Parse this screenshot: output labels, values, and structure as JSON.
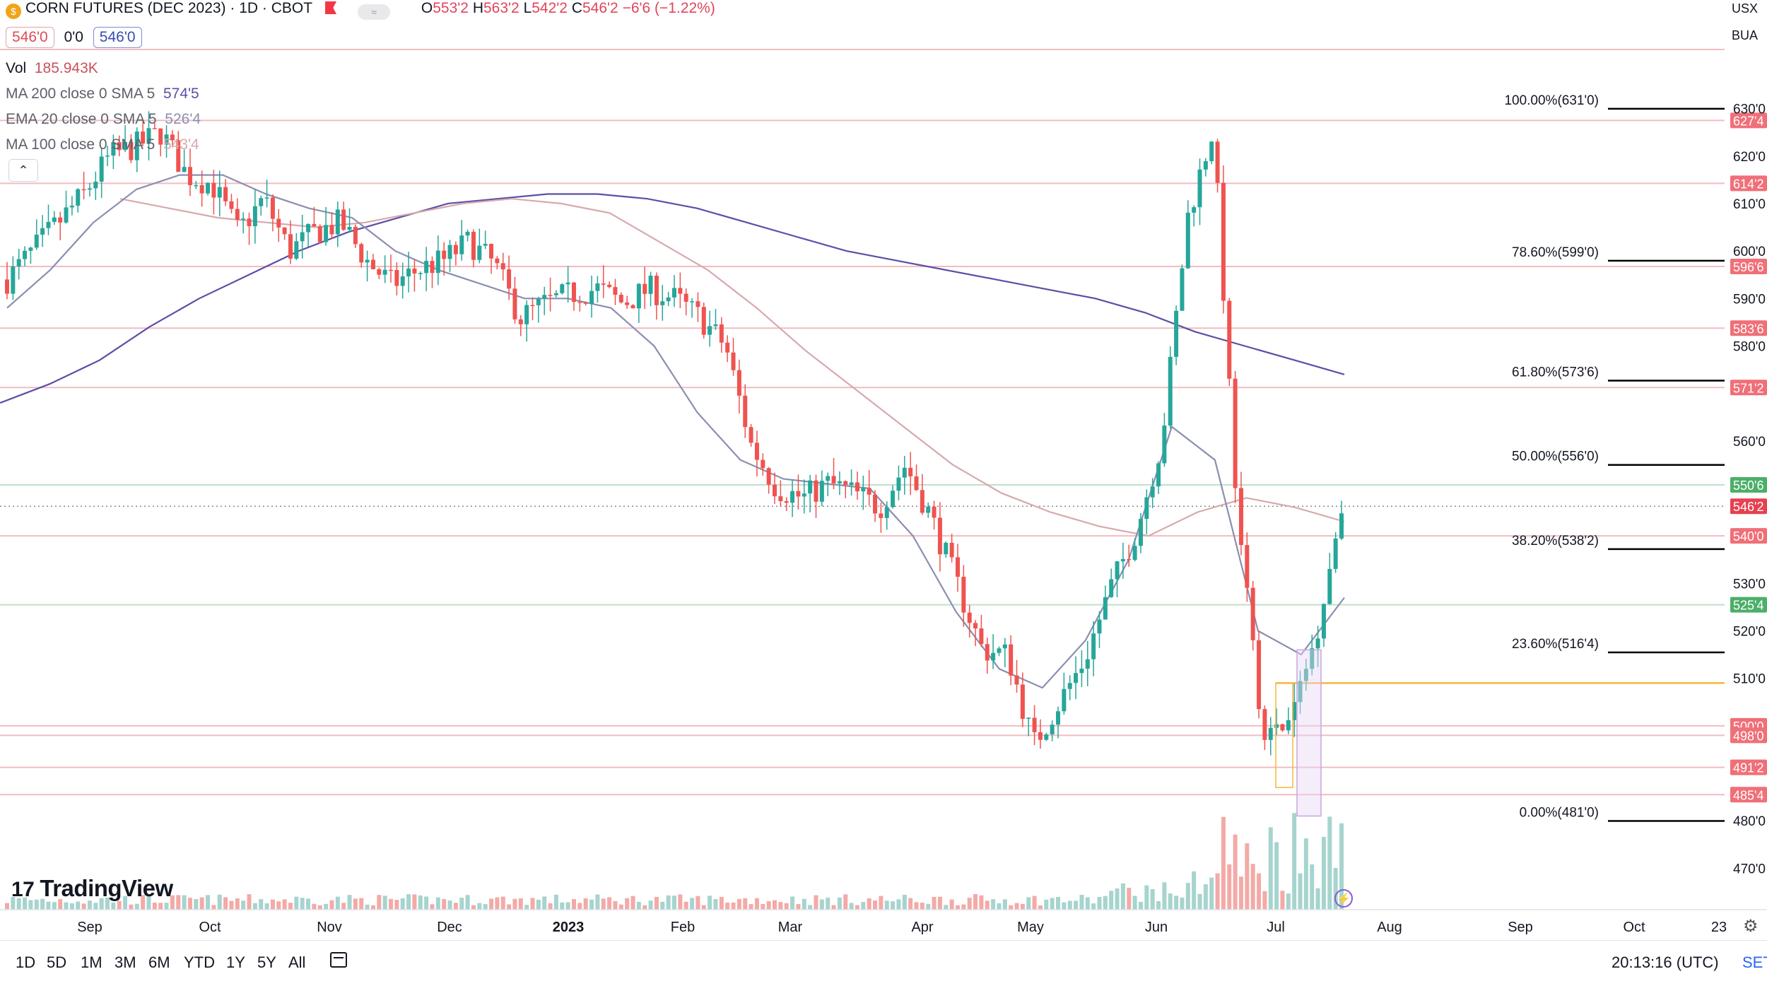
{
  "header": {
    "symbol_title": "CORN FUTURES (DEC 2023) · 1D · CBOT",
    "ohlc": {
      "o_label": "O",
      "o": "553'2",
      "h_label": "H",
      "h": "563'2",
      "l_label": "L",
      "l": "542'2",
      "c_label": "C",
      "c": "546'2",
      "change": "−6'6 (−1.22%)"
    },
    "sell_price": "546'0",
    "spread": "0'0",
    "buy_price": "546'0",
    "toggle_glyph": "≈"
  },
  "indicators": {
    "vol": {
      "label": "Vol",
      "value": "185.943K"
    },
    "ma200": {
      "label": "MA 200 close 0 SMA 5",
      "value": "574'5",
      "color": "#5b4fa6"
    },
    "ema20": {
      "label": "EMA 20 close 0 SMA 5",
      "value": "526'4",
      "color": "#8a8fb0"
    },
    "ma100": {
      "label": "MA 100 close 0 SMA 5",
      "value": "543'4",
      "color": "#d7a9ad"
    }
  },
  "collapse_glyph": "⌃",
  "top_right": {
    "currency": "USX",
    "unit": "BUA"
  },
  "brand": {
    "mark": "17",
    "name": "TradingView"
  },
  "bottom_bar": {
    "ranges": [
      "1D",
      "5D",
      "1M",
      "3M",
      "6M",
      "YTD",
      "1Y",
      "5Y",
      "All"
    ],
    "clock": "20:13:16 (UTC)",
    "settings": "SET"
  },
  "colors": {
    "up": "#26a69a",
    "down": "#ef5350",
    "vol_up": "#a6d4ce",
    "vol_down": "#f3aaa7",
    "level": "#f2bcc0",
    "fib": "#000000",
    "axis_text": "#131722"
  },
  "chart_data": {
    "type": "candlestick",
    "x_unit": "date",
    "y_unit": "cents (1/8 ticks)",
    "y_ticks": [
      "630'0",
      "620'0",
      "610'0",
      "600'0",
      "590'0",
      "580'0",
      "560'0",
      "530'0",
      "520'0",
      "510'0",
      "480'0",
      "470'0"
    ],
    "x_ticks": [
      "Sep",
      "Oct",
      "Nov",
      "Dec",
      "2023",
      "Feb",
      "Mar",
      "Apr",
      "May",
      "Jun",
      "Jul",
      "Aug",
      "Sep",
      "Oct",
      "23"
    ],
    "horizontal_levels": [
      {
        "label": "627'4",
        "value": 627.5
      },
      {
        "label": "614'2",
        "value": 614.25
      },
      {
        "label": "596'6",
        "value": 596.75
      },
      {
        "label": "583'6",
        "value": 583.75
      },
      {
        "label": "571'2",
        "value": 571.25
      },
      {
        "label": "540'0",
        "value": 540.0
      },
      {
        "label": "500'0",
        "value": 500.0
      },
      {
        "label": "498'0",
        "value": 498.0
      },
      {
        "label": "491'2",
        "value": 491.25
      },
      {
        "label": "485'4",
        "value": 485.5
      }
    ],
    "green_levels": [
      {
        "label": "550'6",
        "value": 550.75
      },
      {
        "label": "525'4",
        "value": 525.5
      }
    ],
    "current_price": {
      "label": "546'2",
      "value": 546.25
    },
    "orange_level": 509.0,
    "fibonacci": [
      {
        "label": "100.00%(631'0)",
        "value": 631.0
      },
      {
        "label": "78.60%(599'0)",
        "value": 599.0
      },
      {
        "label": "61.80%(573'6)",
        "value": 573.75
      },
      {
        "label": "50.00%(556'0)",
        "value": 556.0
      },
      {
        "label": "38.20%(538'2)",
        "value": 538.25
      },
      {
        "label": "23.60%(516'4)",
        "value": 516.5
      },
      {
        "label": "0.00%(481'0)",
        "value": 481.0
      }
    ],
    "closes_weekly": [
      594,
      600,
      606,
      612,
      620,
      622,
      625,
      616,
      614,
      604,
      611,
      600,
      604,
      606,
      598,
      593,
      596,
      598,
      602,
      597,
      586,
      589,
      591,
      592,
      589,
      592,
      590,
      586,
      580,
      559,
      550,
      548,
      551,
      549,
      546,
      555,
      544,
      530,
      516,
      515,
      496,
      505,
      514,
      529,
      541,
      560,
      607,
      626,
      540,
      497,
      501,
      519,
      546
    ],
    "ma200_sample": [
      568,
      572,
      577,
      584,
      590,
      595,
      600,
      604,
      607,
      610,
      611,
      612,
      612,
      611,
      609,
      606,
      603,
      600,
      598,
      596,
      594,
      592,
      590,
      587,
      583,
      580,
      577,
      574
    ],
    "ma100_sample": [
      611,
      609,
      607,
      606,
      605,
      606,
      608,
      610,
      611,
      610,
      608,
      602,
      596,
      588,
      579,
      571,
      563,
      555,
      549,
      545,
      542,
      540,
      545,
      548,
      546,
      543
    ],
    "ema20_sample": [
      588,
      596,
      606,
      613,
      616,
      616,
      612,
      609,
      607,
      600,
      596,
      593,
      590,
      590,
      588,
      580,
      566,
      556,
      552,
      551,
      550,
      540,
      524,
      512,
      508,
      518,
      535,
      563,
      556,
      520,
      515,
      527
    ]
  }
}
